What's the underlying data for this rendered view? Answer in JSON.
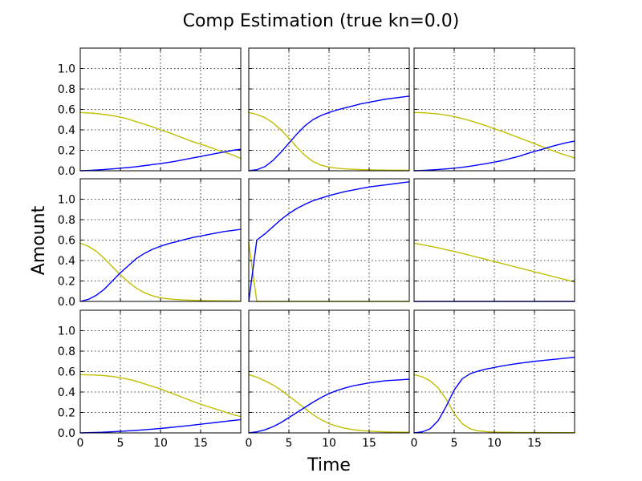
{
  "figure": {
    "title": "Comp Estimation (true kn=0.0)",
    "xlabel": "Time",
    "ylabel": "Amount"
  },
  "chart_data": {
    "type": "line",
    "layout": "3x3 grid of subplots",
    "xlim": [
      0,
      20
    ],
    "ylim": [
      0,
      1.2
    ],
    "xticks": [
      0,
      5,
      10,
      15
    ],
    "yticks": [
      0.0,
      0.2,
      0.4,
      0.6,
      0.8,
      1.0
    ],
    "xtick_labels": [
      "0",
      "5",
      "10",
      "15"
    ],
    "ytick_labels": [
      "0.0",
      "0.2",
      "0.4",
      "0.6",
      "0.8",
      "1.0"
    ],
    "grid": true,
    "colors": {
      "yellow_series": "#bfbf00",
      "blue_series": "#0000ff"
    },
    "x": [
      0,
      1,
      2,
      3,
      4,
      5,
      6,
      7,
      8,
      9,
      10,
      11,
      12,
      13,
      14,
      15,
      16,
      17,
      18,
      19,
      20
    ],
    "panels": [
      {
        "row": 0,
        "col": 0,
        "yellow": [
          0.57,
          0.565,
          0.56,
          0.55,
          0.54,
          0.525,
          0.505,
          0.48,
          0.455,
          0.43,
          0.4,
          0.375,
          0.345,
          0.315,
          0.285,
          0.26,
          0.235,
          0.205,
          0.18,
          0.155,
          0.12
        ],
        "blue": [
          0.0,
          0.003,
          0.007,
          0.012,
          0.018,
          0.025,
          0.032,
          0.04,
          0.05,
          0.06,
          0.07,
          0.082,
          0.095,
          0.11,
          0.125,
          0.14,
          0.155,
          0.17,
          0.185,
          0.2,
          0.21
        ]
      },
      {
        "row": 0,
        "col": 1,
        "yellow": [
          0.57,
          0.55,
          0.52,
          0.47,
          0.4,
          0.32,
          0.23,
          0.15,
          0.09,
          0.055,
          0.035,
          0.025,
          0.018,
          0.014,
          0.011,
          0.009,
          0.007,
          0.006,
          0.005,
          0.005,
          0.004
        ],
        "blue": [
          0.0,
          0.01,
          0.04,
          0.1,
          0.18,
          0.27,
          0.36,
          0.44,
          0.5,
          0.54,
          0.57,
          0.595,
          0.615,
          0.635,
          0.655,
          0.67,
          0.685,
          0.7,
          0.71,
          0.72,
          0.73
        ]
      },
      {
        "row": 0,
        "col": 2,
        "yellow": [
          0.57,
          0.568,
          0.562,
          0.555,
          0.545,
          0.53,
          0.51,
          0.49,
          0.465,
          0.44,
          0.41,
          0.385,
          0.355,
          0.325,
          0.295,
          0.265,
          0.235,
          0.205,
          0.175,
          0.15,
          0.125
        ],
        "blue": [
          0.0,
          0.003,
          0.007,
          0.012,
          0.018,
          0.025,
          0.034,
          0.045,
          0.057,
          0.07,
          0.085,
          0.1,
          0.12,
          0.14,
          0.165,
          0.19,
          0.21,
          0.235,
          0.255,
          0.275,
          0.29
        ]
      },
      {
        "row": 1,
        "col": 0,
        "yellow": [
          0.57,
          0.54,
          0.49,
          0.42,
          0.34,
          0.26,
          0.19,
          0.13,
          0.085,
          0.055,
          0.035,
          0.025,
          0.018,
          0.014,
          0.011,
          0.009,
          0.007,
          0.006,
          0.005,
          0.005,
          0.004
        ],
        "blue": [
          0.0,
          0.02,
          0.06,
          0.12,
          0.2,
          0.28,
          0.35,
          0.42,
          0.47,
          0.51,
          0.54,
          0.565,
          0.585,
          0.605,
          0.625,
          0.64,
          0.655,
          0.67,
          0.685,
          0.695,
          0.705
        ]
      },
      {
        "row": 1,
        "col": 1,
        "yellow": [
          0.57,
          0.0,
          0.0,
          0.0,
          0.0,
          0.0,
          0.0,
          0.0,
          0.0,
          0.0,
          0.0,
          0.0,
          0.0,
          0.0,
          0.0,
          0.0,
          0.0,
          0.0,
          0.0,
          0.0,
          0.0
        ],
        "blue": [
          0.0,
          0.6,
          0.66,
          0.73,
          0.8,
          0.86,
          0.91,
          0.95,
          0.985,
          1.01,
          1.035,
          1.055,
          1.075,
          1.09,
          1.105,
          1.12,
          1.13,
          1.14,
          1.15,
          1.16,
          1.17
        ]
      },
      {
        "row": 1,
        "col": 2,
        "yellow": [
          0.57,
          0.555,
          0.54,
          0.525,
          0.505,
          0.49,
          0.47,
          0.45,
          0.43,
          0.41,
          0.39,
          0.37,
          0.35,
          0.33,
          0.31,
          0.29,
          0.27,
          0.25,
          0.23,
          0.21,
          0.19
        ],
        "blue": [
          0.0,
          0.0,
          0.0,
          0.0,
          0.0,
          0.0,
          0.0,
          0.0,
          0.0,
          0.0,
          0.0,
          0.0,
          0.0,
          0.0,
          0.0,
          0.0,
          0.0,
          0.0,
          0.0,
          0.0,
          0.0
        ]
      },
      {
        "row": 2,
        "col": 0,
        "yellow": [
          0.57,
          0.568,
          0.565,
          0.56,
          0.552,
          0.54,
          0.525,
          0.505,
          0.48,
          0.455,
          0.43,
          0.4,
          0.37,
          0.34,
          0.31,
          0.28,
          0.255,
          0.23,
          0.205,
          0.18,
          0.16
        ],
        "blue": [
          0.0,
          0.002,
          0.004,
          0.007,
          0.011,
          0.015,
          0.02,
          0.025,
          0.031,
          0.037,
          0.044,
          0.051,
          0.059,
          0.067,
          0.076,
          0.085,
          0.094,
          0.103,
          0.112,
          0.121,
          0.13
        ]
      },
      {
        "row": 2,
        "col": 1,
        "yellow": [
          0.57,
          0.545,
          0.51,
          0.47,
          0.42,
          0.36,
          0.3,
          0.24,
          0.18,
          0.13,
          0.09,
          0.065,
          0.045,
          0.032,
          0.023,
          0.017,
          0.013,
          0.01,
          0.008,
          0.007,
          0.006
        ],
        "blue": [
          0.0,
          0.01,
          0.03,
          0.06,
          0.1,
          0.15,
          0.2,
          0.25,
          0.3,
          0.345,
          0.385,
          0.415,
          0.44,
          0.46,
          0.475,
          0.49,
          0.5,
          0.51,
          0.515,
          0.52,
          0.525
        ]
      },
      {
        "row": 2,
        "col": 2,
        "yellow": [
          0.57,
          0.55,
          0.51,
          0.44,
          0.33,
          0.19,
          0.09,
          0.04,
          0.02,
          0.012,
          0.008,
          0.006,
          0.005,
          0.004,
          0.003,
          0.003,
          0.003,
          0.002,
          0.002,
          0.002,
          0.002
        ],
        "blue": [
          0.0,
          0.01,
          0.04,
          0.12,
          0.26,
          0.42,
          0.53,
          0.58,
          0.605,
          0.625,
          0.64,
          0.655,
          0.668,
          0.68,
          0.69,
          0.7,
          0.708,
          0.716,
          0.724,
          0.732,
          0.74
        ]
      }
    ]
  }
}
